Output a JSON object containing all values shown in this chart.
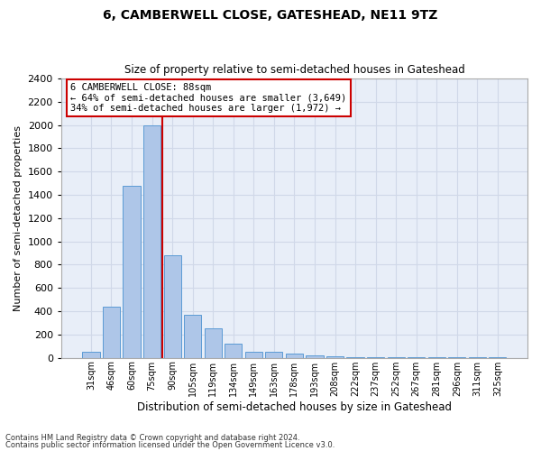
{
  "title": "6, CAMBERWELL CLOSE, GATESHEAD, NE11 9TZ",
  "subtitle": "Size of property relative to semi-detached houses in Gateshead",
  "xlabel": "Distribution of semi-detached houses by size in Gateshead",
  "ylabel": "Number of semi-detached properties",
  "categories": [
    "31sqm",
    "46sqm",
    "60sqm",
    "75sqm",
    "90sqm",
    "105sqm",
    "119sqm",
    "134sqm",
    "149sqm",
    "163sqm",
    "178sqm",
    "193sqm",
    "208sqm",
    "222sqm",
    "237sqm",
    "252sqm",
    "267sqm",
    "281sqm",
    "296sqm",
    "311sqm",
    "325sqm"
  ],
  "values": [
    50,
    440,
    1480,
    2000,
    880,
    370,
    255,
    125,
    55,
    55,
    35,
    20,
    10,
    5,
    5,
    3,
    2,
    2,
    2,
    2,
    2
  ],
  "bar_color": "#aec6e8",
  "bar_edge_color": "#5b9bd5",
  "annotation_title": "6 CAMBERWELL CLOSE: 88sqm",
  "annotation_line1": "← 64% of semi-detached houses are smaller (3,649)",
  "annotation_line2": "34% of semi-detached houses are larger (1,972) →",
  "annotation_box_color": "#ffffff",
  "annotation_box_edge": "#cc0000",
  "highlight_line_color": "#cc0000",
  "ylim": [
    0,
    2400
  ],
  "yticks": [
    0,
    200,
    400,
    600,
    800,
    1000,
    1200,
    1400,
    1600,
    1800,
    2000,
    2200,
    2400
  ],
  "grid_color": "#d0d8e8",
  "background_color": "#e8eef8",
  "footer1": "Contains HM Land Registry data © Crown copyright and database right 2024.",
  "footer2": "Contains public sector information licensed under the Open Government Licence v3.0."
}
